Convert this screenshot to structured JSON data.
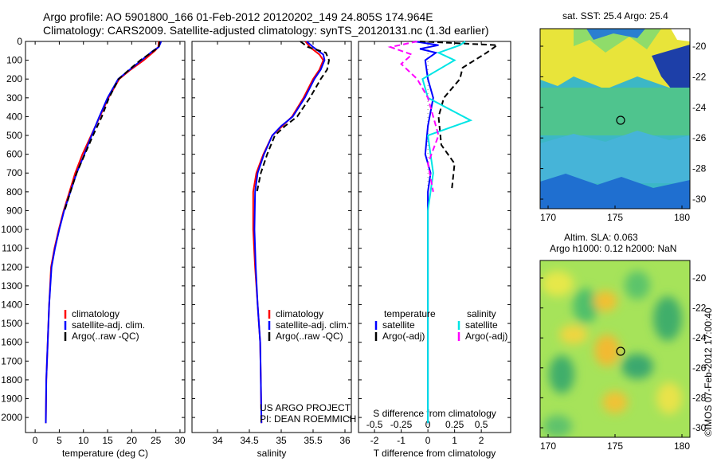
{
  "title": {
    "line1": "Argo profile: AO 5901800_166 01-Feb-2012 20120202_149 24.805S 174.964E",
    "line2": "Climatology: CARS2009. Satellite-adjusted climatology: synTS_20120131.nc (1.3d earlier)"
  },
  "colors": {
    "climatology": "#ff0000",
    "satellite": "#0000ff",
    "argo": "#000000",
    "sat_salinity": "#00e5e5",
    "argo_salinity": "#ff00ff"
  },
  "chart_data": [
    {
      "id": "temperature",
      "type": "line",
      "xlabel": "temperature (deg C)",
      "ylabel": "",
      "xlim": [
        -2,
        31
      ],
      "ylim": [
        2080,
        0
      ],
      "xticks": [
        0,
        5,
        10,
        15,
        20,
        25,
        30
      ],
      "yticks": [
        0,
        100,
        200,
        300,
        400,
        500,
        600,
        700,
        800,
        900,
        1000,
        1100,
        1200,
        1300,
        1400,
        1500,
        1600,
        1700,
        1800,
        1900,
        2000
      ],
      "legend": [
        "climatology",
        "satellite-adj. clim.",
        "Argo(..raw -QC)"
      ],
      "series": [
        {
          "name": "climatology",
          "color": "#ff0000",
          "dash": "",
          "x": [
            25.6,
            25.5,
            24.8,
            22.5,
            19.8,
            17.4,
            15.2,
            13.4,
            11.6,
            9.8,
            8.3,
            7.1,
            5.9,
            4.9,
            4.0,
            3.3,
            2.9,
            2.6,
            2.3,
            2.2
          ],
          "y": [
            0,
            30,
            50,
            100,
            150,
            200,
            300,
            400,
            500,
            600,
            700,
            800,
            900,
            1000,
            1100,
            1200,
            1400,
            1600,
            1800,
            2030
          ]
        },
        {
          "name": "satellite-adj. clim.",
          "color": "#0000ff",
          "dash": "",
          "x": [
            26.1,
            25.6,
            24.4,
            22.0,
            19.6,
            17.2,
            15.0,
            13.3,
            11.7,
            10.2,
            8.6,
            7.3,
            6.0,
            5.0,
            4.1,
            3.4,
            2.9,
            2.6,
            2.3,
            2.2
          ],
          "y": [
            0,
            30,
            50,
            100,
            150,
            200,
            300,
            400,
            500,
            600,
            700,
            800,
            900,
            1000,
            1100,
            1200,
            1400,
            1600,
            1800,
            2030
          ]
        },
        {
          "name": "Argo(..raw -QC)",
          "color": "#000000",
          "dash": "7,4",
          "x": [
            25.8,
            25.6,
            24.0,
            21.8,
            19.5,
            17.3,
            15.3,
            13.8,
            12.0,
            10.3,
            8.6,
            7.3,
            6.1
          ],
          "y": [
            0,
            30,
            60,
            100,
            150,
            200,
            300,
            400,
            500,
            600,
            700,
            800,
            900
          ]
        }
      ]
    },
    {
      "id": "salinity",
      "type": "line",
      "xlabel": "salinity",
      "ylabel": "",
      "xlim": [
        33.6,
        36.1
      ],
      "ylim": [
        2080,
        0
      ],
      "xticks": [
        34,
        34.5,
        35,
        35.5,
        36
      ],
      "legend": [
        "climatology",
        "satellite-adj. clim.",
        "Argo(..raw -QC)"
      ],
      "series": [
        {
          "name": "climatology",
          "color": "#ff0000",
          "dash": "",
          "x": [
            35.38,
            35.45,
            35.6,
            35.66,
            35.6,
            35.5,
            35.35,
            35.17,
            35.02,
            34.86,
            34.72,
            34.61,
            34.56,
            34.56,
            34.59,
            34.63,
            34.67,
            34.68,
            34.69
          ],
          "y": [
            0,
            30,
            70,
            100,
            150,
            200,
            300,
            400,
            450,
            500,
            600,
            700,
            800,
            1000,
            1200,
            1400,
            1600,
            1800,
            2030
          ]
        },
        {
          "name": "satellite-adj. clim.",
          "color": "#0000ff",
          "dash": "",
          "x": [
            35.4,
            35.5,
            35.66,
            35.68,
            35.62,
            35.52,
            35.37,
            35.18,
            35.0,
            34.86,
            34.73,
            34.63,
            34.59,
            34.58,
            34.6,
            34.63,
            34.67,
            34.68,
            34.69
          ],
          "y": [
            0,
            30,
            70,
            100,
            150,
            200,
            300,
            400,
            450,
            500,
            600,
            700,
            800,
            1000,
            1200,
            1400,
            1600,
            1800,
            2030
          ]
        },
        {
          "name": "Argo(..raw -QC)",
          "color": "#000000",
          "dash": "7,4",
          "x": [
            35.3,
            35.42,
            35.7,
            35.75,
            35.72,
            35.62,
            35.45,
            35.25,
            35.06,
            34.9,
            34.78,
            34.68,
            34.62
          ],
          "y": [
            0,
            30,
            60,
            100,
            150,
            200,
            300,
            400,
            450,
            500,
            600,
            700,
            800
          ]
        }
      ]
    },
    {
      "id": "difference",
      "type": "line",
      "xlabel": "T difference from climatology",
      "xlabel2": "S difference from climatology",
      "xlim": [
        -2.6,
        3.1
      ],
      "ylim": [
        2080,
        0
      ],
      "xticks": [
        -2,
        -1,
        0,
        1,
        2
      ],
      "xtick_labels": [
        "-2",
        "-1",
        "0",
        "1",
        "2"
      ],
      "xticks2": [
        -0.5,
        -0.25,
        0,
        0.25,
        0.5
      ],
      "xtick2_labels": [
        "-0.5",
        "-0.25",
        "0",
        "0.25",
        "0.5"
      ],
      "legend_headers": [
        "temperature",
        "salinity"
      ],
      "legend": [
        "satellite",
        "Argo(-adj)",
        "satellite",
        "Argo(-adj)"
      ],
      "series": [
        {
          "name": "temperature satellite",
          "color": "#0000ff",
          "dash": "",
          "x": [
            -0.5,
            0.4,
            -0.3,
            0.3,
            -0.1,
            0.0,
            0.2,
            0.0,
            -0.1,
            0.1,
            0.0,
            0.0,
            0.0,
            0.0,
            0.0
          ],
          "y": [
            0,
            20,
            40,
            60,
            100,
            200,
            300,
            450,
            600,
            700,
            800,
            1000,
            1400,
            1800,
            2030
          ]
        },
        {
          "name": "temperature Argo(-adj)",
          "color": "#000000",
          "dash": "7,4",
          "x": [
            -0.3,
            2.6,
            2.2,
            1.3,
            1.2,
            0.6,
            0.4,
            0.5,
            1.0,
            0.9
          ],
          "y": [
            0,
            20,
            60,
            140,
            200,
            300,
            400,
            550,
            650,
            780
          ]
        },
        {
          "name": "salinity satellite",
          "color": "#00e5e5",
          "dash": "",
          "x": [
            0.35,
            0.3,
            0.1,
            0.25,
            -0.05,
            0.0,
            0.4,
            0.0,
            0.05,
            0.0,
            0.0,
            0.0
          ],
          "y": [
            0,
            20,
            60,
            100,
            200,
            300,
            420,
            500,
            700,
            900,
            1400,
            2030
          ]
        },
        {
          "name": "salinity Argo(-adj)",
          "color": "#ff00ff",
          "dash": "7,4",
          "x": [
            -0.1,
            -0.35,
            -0.15,
            -0.25,
            -0.1,
            0.0,
            0.1,
            0.0,
            0.05
          ],
          "y": [
            0,
            30,
            70,
            120,
            200,
            300,
            500,
            650,
            800
          ]
        }
      ]
    }
  ],
  "labels": {
    "project": "US ARGO PROJECT",
    "pi": "PI: DEAN ROEMMICH"
  },
  "map1": {
    "title": "sat. SST: 25.4  Argo: 25.4",
    "xticks": [
      "170",
      "175",
      "180"
    ],
    "yticks": [
      "-20",
      "-22",
      "-24",
      "-26",
      "-28",
      "-30"
    ]
  },
  "map2": {
    "title1": "Altim. SLA: 0.063",
    "title2": "Argo h1000: 0.12 h2000: NaN",
    "xticks": [
      "170",
      "175",
      "180"
    ],
    "yticks": [
      "-20",
      "-22",
      "-24",
      "-26",
      "-28",
      "-30"
    ]
  },
  "credit": "©IMOS 07-Feb-2012 17:00:40"
}
